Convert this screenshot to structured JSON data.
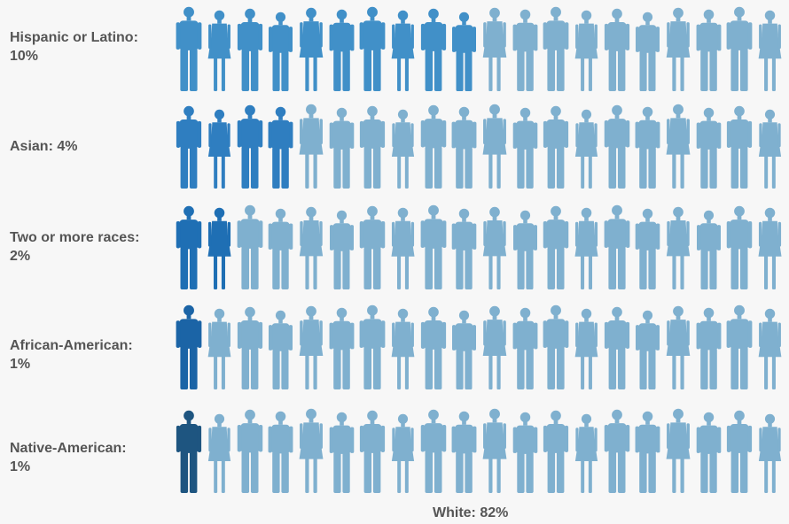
{
  "chart_data": {
    "type": "pictograph",
    "rows": [
      {
        "label_line1": "Hispanic or Latino:",
        "label_line2": "10%",
        "highlighted": 10
      },
      {
        "label_line1": "Asian: 4%",
        "label_line2": "",
        "highlighted": 4
      },
      {
        "label_line1": "Two or more races:",
        "label_line2": "2%",
        "highlighted": 2
      },
      {
        "label_line1": "African-American:",
        "label_line2": "1%",
        "highlighted": 1
      },
      {
        "label_line1": "Native-American:",
        "label_line2": "1%",
        "highlighted": 1
      }
    ],
    "figures_per_row": 20,
    "remainder_label": "White: 82%",
    "colors": {
      "white": "#7fb0cf",
      "highlight": [
        "#4190c8",
        "#2f7ec0",
        "#1f6fb4",
        "#1b64a6",
        "#1e5580"
      ]
    }
  }
}
